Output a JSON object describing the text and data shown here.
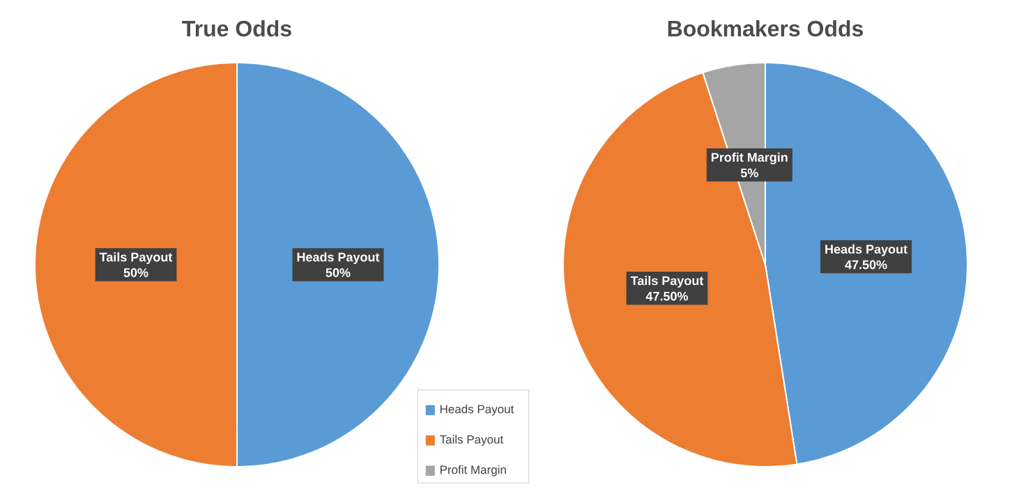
{
  "chart_data": [
    {
      "type": "pie",
      "title": "True Odds",
      "categories": [
        "Heads Payout",
        "Tails Payout"
      ],
      "values": [
        50,
        50
      ],
      "colors": [
        "#5b9bd5",
        "#ed7d31"
      ],
      "value_labels": [
        "50%",
        "50%"
      ]
    },
    {
      "type": "pie",
      "title": "Bookmakers Odds",
      "categories": [
        "Heads Payout",
        "Tails Payout",
        "Profit Margin"
      ],
      "values": [
        47.5,
        47.5,
        5
      ],
      "colors": [
        "#5b9bd5",
        "#ed7d31",
        "#a5a5a5"
      ],
      "value_labels": [
        "47.50%",
        "47.50%",
        "5%"
      ],
      "legend": "bottom left"
    }
  ]
}
